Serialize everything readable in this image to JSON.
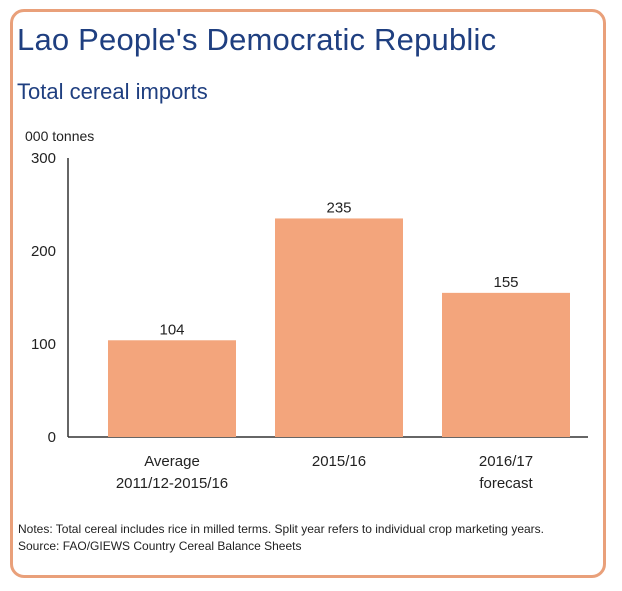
{
  "header": {
    "title": "Lao People's Democratic Republic",
    "subtitle": "Total cereal imports"
  },
  "colors": {
    "frame": "#e9a07a",
    "title": "#1f3f80",
    "bar": "#f3a57c",
    "axis": "#333333",
    "text": "#222222"
  },
  "chart_data": {
    "type": "bar",
    "ylabel": "000 tonnes",
    "xlabel": "",
    "ylim": [
      0,
      300
    ],
    "yticks": [
      0,
      100,
      200,
      300
    ],
    "grid": false,
    "categories": [
      [
        "Average",
        "2011/12-2015/16"
      ],
      [
        "2015/16"
      ],
      [
        "2016/17",
        "forecast"
      ]
    ],
    "values": [
      104,
      235,
      155
    ],
    "data_labels": [
      "104",
      "235",
      "155"
    ]
  },
  "footer": {
    "notes": "Notes: Total cereal includes rice in milled terms. Split year refers to individual crop marketing years.",
    "source": "Source: FAO/GIEWS Country Cereal Balance Sheets"
  }
}
